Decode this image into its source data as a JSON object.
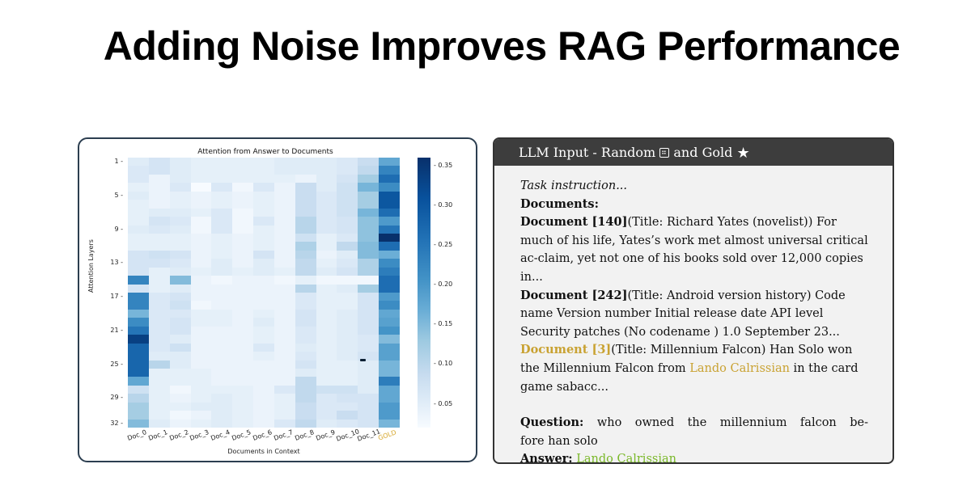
{
  "page": {
    "title": "Adding Noise Improves RAG Performance"
  },
  "chart_data": {
    "type": "heatmap",
    "title": "Attention from Answer to Documents",
    "xlabel": "Documents in Context",
    "ylabel": "Attention Layers",
    "x_categories": [
      "Doc_0",
      "Doc_1",
      "Doc_2",
      "Doc_3",
      "Doc_4",
      "Doc_5",
      "Doc_6",
      "Doc_7",
      "Doc_8",
      "Doc_9",
      "Doc_10",
      "Doc_11",
      "GOLD"
    ],
    "highlighted_category": "GOLD",
    "highlight_color": "#d6a62a",
    "y_ticks": [
      "1",
      "5",
      "9",
      "13",
      "17",
      "21",
      "25",
      "29",
      "32"
    ],
    "y_range": [
      1,
      32
    ],
    "colormap": "Blues",
    "colorbar_ticks": [
      "0.35",
      "0.30",
      "0.25",
      "0.20",
      "0.15",
      "0.10",
      "0.05"
    ],
    "value_range": [
      0.02,
      0.36
    ],
    "values": [
      [
        0.06,
        0.08,
        0.06,
        0.05,
        0.05,
        0.05,
        0.05,
        0.06,
        0.06,
        0.06,
        0.07,
        0.1,
        0.2
      ],
      [
        0.07,
        0.08,
        0.06,
        0.05,
        0.05,
        0.05,
        0.05,
        0.06,
        0.06,
        0.06,
        0.07,
        0.11,
        0.25
      ],
      [
        0.07,
        0.04,
        0.06,
        0.05,
        0.05,
        0.05,
        0.05,
        0.05,
        0.04,
        0.06,
        0.08,
        0.14,
        0.28
      ],
      [
        0.05,
        0.04,
        0.07,
        0.02,
        0.07,
        0.03,
        0.07,
        0.04,
        0.1,
        0.06,
        0.09,
        0.18,
        0.24
      ],
      [
        0.06,
        0.04,
        0.05,
        0.04,
        0.05,
        0.04,
        0.05,
        0.04,
        0.1,
        0.07,
        0.09,
        0.14,
        0.31
      ],
      [
        0.05,
        0.04,
        0.05,
        0.04,
        0.05,
        0.04,
        0.05,
        0.04,
        0.1,
        0.07,
        0.09,
        0.14,
        0.31
      ],
      [
        0.05,
        0.06,
        0.06,
        0.05,
        0.07,
        0.03,
        0.05,
        0.04,
        0.1,
        0.07,
        0.09,
        0.18,
        0.28
      ],
      [
        0.05,
        0.08,
        0.07,
        0.03,
        0.07,
        0.03,
        0.07,
        0.04,
        0.12,
        0.07,
        0.08,
        0.16,
        0.22
      ],
      [
        0.06,
        0.07,
        0.06,
        0.03,
        0.07,
        0.03,
        0.05,
        0.04,
        0.12,
        0.07,
        0.08,
        0.16,
        0.27
      ],
      [
        0.05,
        0.05,
        0.05,
        0.04,
        0.05,
        0.04,
        0.05,
        0.04,
        0.09,
        0.05,
        0.07,
        0.16,
        0.36
      ],
      [
        0.05,
        0.05,
        0.05,
        0.04,
        0.05,
        0.04,
        0.05,
        0.04,
        0.13,
        0.05,
        0.11,
        0.17,
        0.28
      ],
      [
        0.08,
        0.09,
        0.08,
        0.04,
        0.05,
        0.04,
        0.08,
        0.04,
        0.12,
        0.04,
        0.06,
        0.17,
        0.19
      ],
      [
        0.08,
        0.08,
        0.07,
        0.04,
        0.06,
        0.04,
        0.06,
        0.04,
        0.11,
        0.05,
        0.07,
        0.13,
        0.24
      ],
      [
        0.08,
        0.05,
        0.06,
        0.05,
        0.06,
        0.05,
        0.06,
        0.05,
        0.11,
        0.06,
        0.08,
        0.13,
        0.26
      ],
      [
        0.25,
        0.05,
        0.17,
        0.04,
        0.03,
        0.04,
        0.04,
        0.03,
        0.05,
        0.03,
        0.03,
        0.03,
        0.28
      ],
      [
        0.08,
        0.05,
        0.06,
        0.04,
        0.04,
        0.04,
        0.04,
        0.04,
        0.12,
        0.05,
        0.06,
        0.14,
        0.28
      ],
      [
        0.25,
        0.07,
        0.08,
        0.04,
        0.04,
        0.04,
        0.04,
        0.04,
        0.07,
        0.05,
        0.05,
        0.08,
        0.22
      ],
      [
        0.25,
        0.07,
        0.09,
        0.03,
        0.04,
        0.04,
        0.04,
        0.04,
        0.07,
        0.05,
        0.05,
        0.08,
        0.24
      ],
      [
        0.18,
        0.07,
        0.07,
        0.05,
        0.05,
        0.04,
        0.05,
        0.04,
        0.08,
        0.05,
        0.06,
        0.08,
        0.2
      ],
      [
        0.24,
        0.07,
        0.08,
        0.05,
        0.05,
        0.04,
        0.06,
        0.04,
        0.08,
        0.05,
        0.06,
        0.08,
        0.21
      ],
      [
        0.27,
        0.07,
        0.08,
        0.04,
        0.04,
        0.04,
        0.05,
        0.04,
        0.07,
        0.05,
        0.06,
        0.08,
        0.23
      ],
      [
        0.34,
        0.07,
        0.06,
        0.04,
        0.04,
        0.04,
        0.05,
        0.04,
        0.07,
        0.05,
        0.06,
        0.07,
        0.17
      ],
      [
        0.29,
        0.07,
        0.09,
        0.04,
        0.04,
        0.04,
        0.07,
        0.04,
        0.06,
        0.05,
        0.06,
        0.07,
        0.21
      ],
      [
        0.29,
        0.06,
        0.06,
        0.04,
        0.04,
        0.04,
        0.05,
        0.04,
        0.07,
        0.05,
        0.06,
        0.08,
        0.21
      ],
      [
        0.29,
        0.12,
        0.06,
        0.04,
        0.04,
        0.04,
        0.04,
        0.04,
        0.08,
        0.05,
        0.05,
        0.06,
        0.18
      ],
      [
        0.29,
        0.05,
        0.05,
        0.05,
        0.04,
        0.04,
        0.04,
        0.04,
        0.06,
        0.05,
        0.05,
        0.06,
        0.18
      ],
      [
        0.2,
        0.05,
        0.05,
        0.05,
        0.04,
        0.04,
        0.04,
        0.04,
        0.11,
        0.05,
        0.05,
        0.06,
        0.26
      ],
      [
        0.09,
        0.05,
        0.03,
        0.05,
        0.05,
        0.05,
        0.04,
        0.07,
        0.11,
        0.09,
        0.09,
        0.06,
        0.2
      ],
      [
        0.12,
        0.05,
        0.04,
        0.05,
        0.06,
        0.05,
        0.04,
        0.05,
        0.11,
        0.07,
        0.08,
        0.08,
        0.2
      ],
      [
        0.14,
        0.05,
        0.05,
        0.06,
        0.06,
        0.05,
        0.04,
        0.05,
        0.1,
        0.07,
        0.07,
        0.08,
        0.22
      ],
      [
        0.14,
        0.05,
        0.03,
        0.04,
        0.06,
        0.05,
        0.04,
        0.05,
        0.1,
        0.07,
        0.1,
        0.08,
        0.22
      ],
      [
        0.17,
        0.06,
        0.04,
        0.05,
        0.06,
        0.05,
        0.04,
        0.07,
        0.11,
        0.06,
        0.07,
        0.08,
        0.18
      ]
    ],
    "annotations": [
      {
        "type": "marker",
        "row": 25,
        "col": "Doc_11",
        "color": "#0b1f33"
      }
    ]
  },
  "llm_input": {
    "header_prefix": "LLM Input - Random",
    "header_mid": "and Gold",
    "header_icons": [
      "dice-icon",
      "star-icon"
    ],
    "task_instruction": "Task instruction...",
    "documents_label": "Documents:",
    "documents": [
      {
        "label": "Document [140]",
        "text": "(Title: Richard Yates (novelist)) For much of his life, Yates’s work met almost universal critical ac-claim, yet not one of his books sold over 12,000 copies in...",
        "is_gold": false
      },
      {
        "label": "Document [242]",
        "text": "(Title: Android version history) Code name Version number Initial release date API level Security patches (No codename ) 1.0 September 23...",
        "is_gold": false
      },
      {
        "label": "Document [3]",
        "text_before": "(Title: Millennium Falcon) Han Solo won the Millennium Falcon from ",
        "highlight": "Lando Calrissian",
        "text_after": " in the card game sabacc...",
        "is_gold": true
      }
    ],
    "question_label": "Question:",
    "question_text": "who owned the millennium falcon be-",
    "question_text_cont": "fore han solo",
    "answer_label": "Answer:",
    "answer_text": "Lando Calrissian",
    "colors": {
      "gold": "#c9a232",
      "answer": "#7ab829",
      "header_bg": "#3d3d3d",
      "body_bg": "#f2f2f2"
    }
  }
}
